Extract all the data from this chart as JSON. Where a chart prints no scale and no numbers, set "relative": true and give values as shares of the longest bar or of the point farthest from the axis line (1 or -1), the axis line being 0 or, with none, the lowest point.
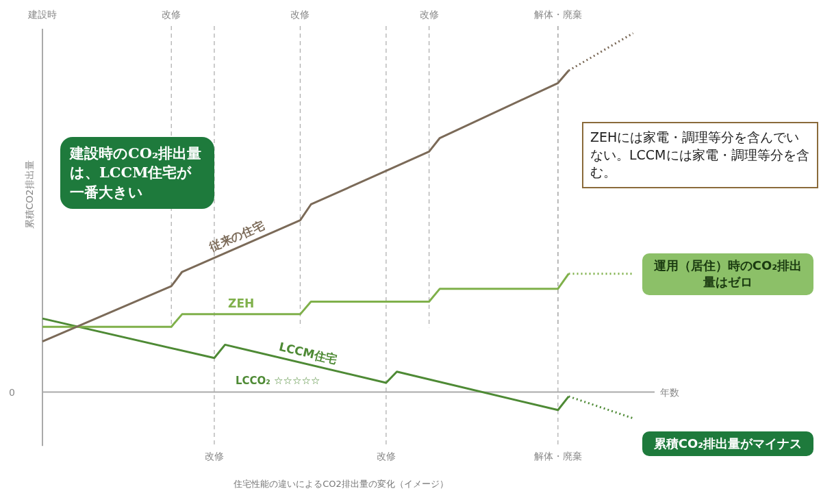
{
  "chart_data": {
    "type": "line",
    "relative": true,
    "ylabel": "累積CO2排出量",
    "xlabel": "年数",
    "grid": "x",
    "legend": false,
    "marker": "none",
    "categories": [
      null,
      null,
      null,
      null,
      null,
      null,
      null,
      null,
      null,
      null,
      null,
      null,
      null,
      null,
      null,
      null,
      "改修",
      null,
      null,
      null,
      null,
      null,
      null,
      null,
      null,
      null,
      null,
      null,
      null,
      null,
      null,
      null,
      "改修",
      null,
      null,
      null,
      null,
      null,
      null,
      null,
      null,
      null,
      null,
      null,
      null,
      null,
      null,
      null,
      "解体・廃棄",
      null,
      null,
      null,
      null,
      null,
      null,
      null,
      null,
      null
    ],
    "series": [
      {
        "name": "従来の住宅",
        "color": "#7b6a58",
        "values": [
          0.141,
          null,
          null,
          null,
          null,
          null,
          null,
          null,
          null,
          null,
          null,
          null,
          0.295,
          0.335,
          null,
          null,
          null,
          null,
          null,
          null,
          null,
          null,
          null,
          null,
          0.479,
          0.523,
          null,
          null,
          null,
          null,
          null,
          null,
          null,
          null,
          null,
          null,
          0.67,
          0.708,
          null,
          null,
          null,
          null,
          null,
          null,
          null,
          null,
          null,
          null,
          0.861,
          0.896,
          null,
          null,
          null,
          null,
          null,
          null,
          null,
          null
        ]
      },
      {
        "color": "#7b6a58",
        "line_style": "dotted",
        "values": [
          null,
          null,
          null,
          null,
          null,
          null,
          null,
          null,
          null,
          null,
          null,
          null,
          null,
          null,
          null,
          null,
          null,
          null,
          null,
          null,
          null,
          null,
          null,
          null,
          null,
          null,
          null,
          null,
          null,
          null,
          null,
          null,
          null,
          null,
          null,
          null,
          null,
          null,
          null,
          null,
          null,
          null,
          null,
          null,
          null,
          null,
          null,
          null,
          null,
          0.896,
          null,
          null,
          null,
          null,
          null,
          1.0,
          null,
          null
        ]
      },
      {
        "name": "ZEH",
        "color": "#7fb04a",
        "values": [
          0.182,
          null,
          null,
          null,
          null,
          null,
          null,
          null,
          null,
          null,
          null,
          null,
          0.182,
          0.217,
          null,
          null,
          null,
          null,
          null,
          null,
          null,
          null,
          null,
          null,
          0.217,
          0.252,
          null,
          null,
          null,
          null,
          null,
          null,
          null,
          null,
          null,
          null,
          0.252,
          0.288,
          null,
          null,
          null,
          null,
          null,
          null,
          null,
          null,
          null,
          null,
          0.288,
          0.33,
          null,
          null,
          null,
          null,
          null,
          null,
          null,
          null
        ]
      },
      {
        "color": "#7fb04a",
        "line_style": "dotted",
        "values": [
          null,
          null,
          null,
          null,
          null,
          null,
          null,
          null,
          null,
          null,
          null,
          null,
          null,
          null,
          null,
          null,
          null,
          null,
          null,
          null,
          null,
          null,
          null,
          null,
          null,
          null,
          null,
          null,
          null,
          null,
          null,
          null,
          null,
          null,
          null,
          null,
          null,
          null,
          null,
          null,
          null,
          null,
          null,
          null,
          null,
          null,
          null,
          null,
          null,
          0.33,
          null,
          null,
          null,
          null,
          null,
          0.33,
          null,
          null
        ]
      },
      {
        "name": "LCCM住宅",
        "color": "#4e8a35",
        "values": [
          0.205,
          null,
          null,
          null,
          null,
          null,
          null,
          null,
          null,
          null,
          null,
          null,
          null,
          null,
          null,
          null,
          0.095,
          0.132,
          null,
          null,
          null,
          null,
          null,
          null,
          null,
          null,
          null,
          null,
          null,
          null,
          null,
          null,
          0.026,
          0.057,
          null,
          null,
          null,
          null,
          null,
          null,
          null,
          null,
          null,
          null,
          null,
          null,
          null,
          null,
          -0.05,
          -0.012,
          null,
          null,
          null,
          null,
          null,
          null,
          null,
          null
        ]
      },
      {
        "color": "#4e8a35",
        "line_style": "dotted",
        "values": [
          null,
          null,
          null,
          null,
          null,
          null,
          null,
          null,
          null,
          null,
          null,
          null,
          null,
          null,
          null,
          null,
          null,
          null,
          null,
          null,
          null,
          null,
          null,
          null,
          null,
          null,
          null,
          null,
          null,
          null,
          null,
          null,
          null,
          null,
          null,
          null,
          null,
          null,
          null,
          null,
          null,
          null,
          null,
          null,
          null,
          null,
          null,
          null,
          null,
          -0.012,
          null,
          null,
          null,
          null,
          null,
          -0.073,
          null,
          null
        ]
      }
    ],
    "ref_lines": [
      {
        "axis": "y",
        "value": 0,
        "label": "0"
      }
    ],
    "annotations": [
      "LCCO₂ ☆☆☆☆☆",
      "建設時のCO₂排出量は、LCCM住宅が一番大きい",
      "ZEHには家電・調理等分を含んでいない。LCCMには家電・調理等分を含む。",
      "運用（居住）時のCO₂排出量はゼロ",
      "累積CO₂排出量がマイナス",
      "住宅性能の違いによるCO2排出量の変化（イメージ）",
      "建設時",
      "改修",
      "改修",
      "改修",
      "解体・廃棄"
    ]
  }
}
